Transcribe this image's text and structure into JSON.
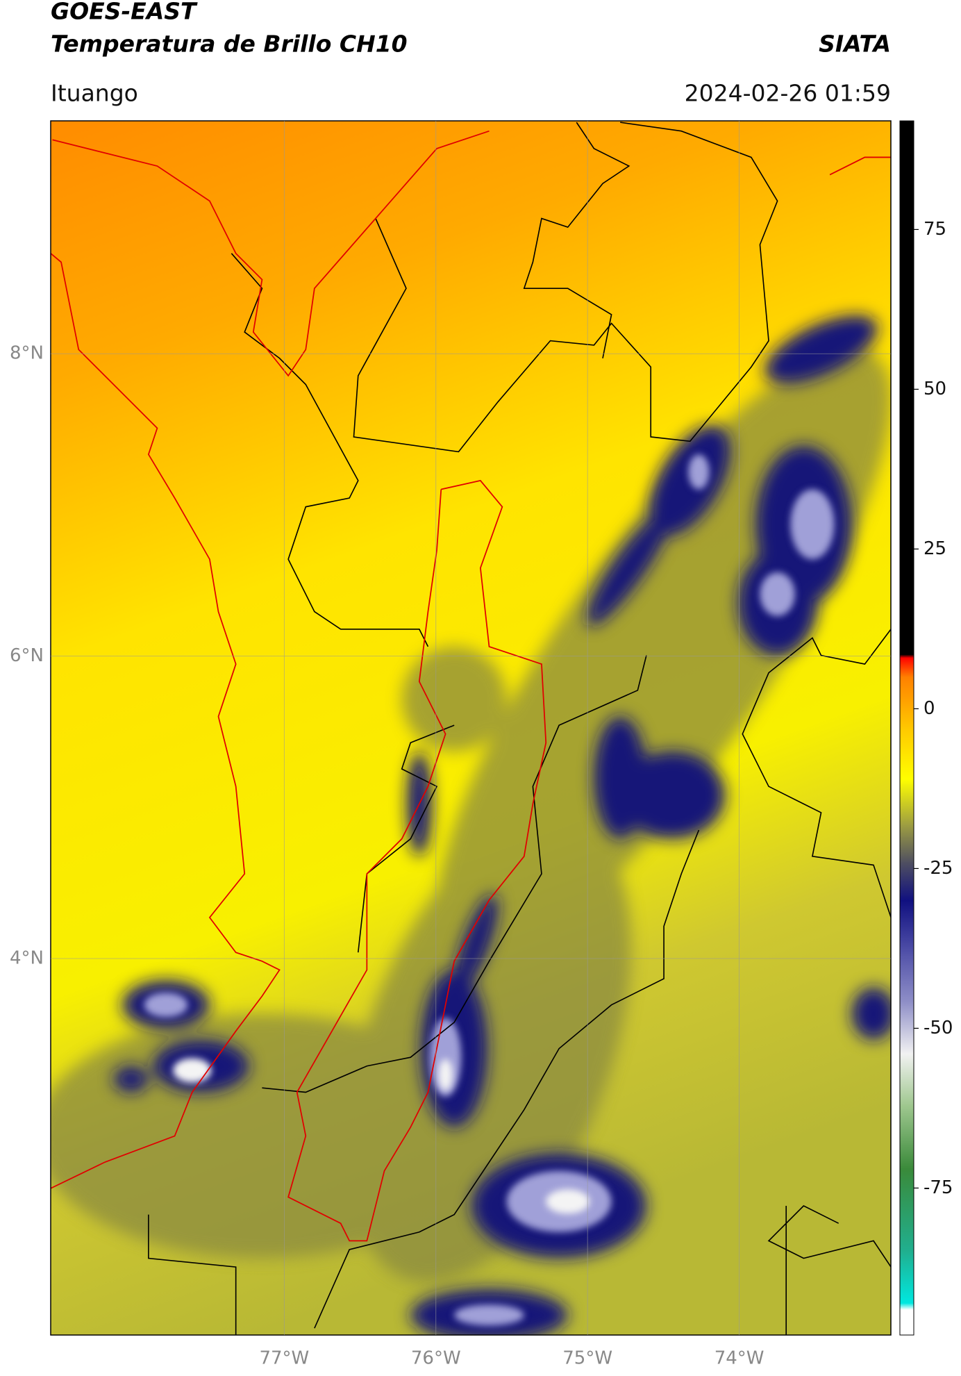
{
  "chart_data": {
    "type": "map",
    "title": "GOES-EAST",
    "subtitle": "Temperatura de Brillo CH10",
    "source": "SIATA",
    "location": "Ituango",
    "datetime": "2024-02-26 01:59",
    "xlim": [
      -78.54,
      -73.0
    ],
    "ylim": [
      1.51,
      9.54
    ],
    "xticks": [
      {
        "value": -77,
        "label": "77°W"
      },
      {
        "value": -76,
        "label": "76°W"
      },
      {
        "value": -75,
        "label": "75°W"
      },
      {
        "value": -74,
        "label": "74°W"
      }
    ],
    "yticks": [
      {
        "value": 8,
        "label": "8°N"
      },
      {
        "value": 6,
        "label": "6°N"
      },
      {
        "value": 4,
        "label": "4°N"
      }
    ],
    "grid": true,
    "colorbar": {
      "lim": [
        -98,
        92
      ],
      "ticks": [
        75,
        50,
        25,
        0,
        -25,
        -50,
        -75
      ],
      "stops": [
        {
          "value": -98,
          "color": "#ffffff"
        },
        {
          "value": -94,
          "color": "#ffffff"
        },
        {
          "value": -93,
          "color": "#00e8e0"
        },
        {
          "value": -85,
          "color": "#20b090"
        },
        {
          "value": -72,
          "color": "#3a8a3a"
        },
        {
          "value": -62,
          "color": "#a0c890"
        },
        {
          "value": -54,
          "color": "#f2f2f2"
        },
        {
          "value": -46,
          "color": "#9090c8"
        },
        {
          "value": -38,
          "color": "#5050a8"
        },
        {
          "value": -30,
          "color": "#101080"
        },
        {
          "value": -24,
          "color": "#505060"
        },
        {
          "value": -18,
          "color": "#a0a040"
        },
        {
          "value": -11,
          "color": "#ffff00"
        },
        {
          "value": -3,
          "color": "#ffc800"
        },
        {
          "value": 5,
          "color": "#ff8000"
        },
        {
          "value": 8,
          "color": "#ff0000"
        },
        {
          "value": 8.5,
          "color": "#000000"
        },
        {
          "value": 92,
          "color": "#000000"
        }
      ]
    }
  }
}
